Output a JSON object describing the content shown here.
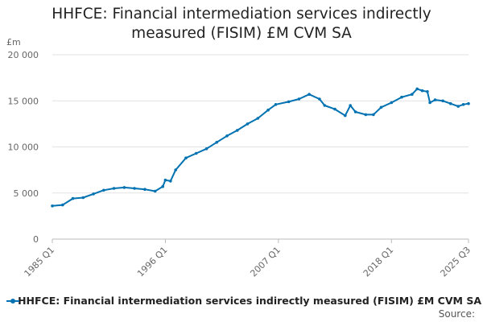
{
  "chart_data": {
    "type": "line",
    "title": "HHFCE: Financial intermediation services indirectly measured (FISIM) £M CVM SA",
    "ylabel": "£m",
    "xlabel": "",
    "ylim": [
      0,
      20000
    ],
    "y_ticks": [
      "0",
      "5 000",
      "10 000",
      "15 000",
      "20 000"
    ],
    "y_tick_values": [
      0,
      5000,
      10000,
      15000,
      20000
    ],
    "x_range": [
      "1985 Q1",
      "2025 Q3"
    ],
    "x_ticks": [
      "1985 Q1",
      "1996 Q1",
      "2007 Q1",
      "2018 Q1",
      "2025 Q3"
    ],
    "grid": true,
    "legend_position": "bottom",
    "series": [
      {
        "name": "HHFCE: Financial intermediation services indirectly measured (FISIM) £M CVM SA",
        "color": "#0072b2",
        "points": [
          [
            "1985 Q1",
            3600
          ],
          [
            "1986 Q1",
            3700
          ],
          [
            "1987 Q1",
            4400
          ],
          [
            "1988 Q1",
            4500
          ],
          [
            "1989 Q1",
            4900
          ],
          [
            "1990 Q1",
            5300
          ],
          [
            "1991 Q1",
            5500
          ],
          [
            "1992 Q1",
            5600
          ],
          [
            "1993 Q1",
            5500
          ],
          [
            "1994 Q1",
            5400
          ],
          [
            "1995 Q1",
            5200
          ],
          [
            "1995 Q4",
            5700
          ],
          [
            "1996 Q1",
            6400
          ],
          [
            "1996 Q3",
            6300
          ],
          [
            "1997 Q1",
            7500
          ],
          [
            "1998 Q1",
            8800
          ],
          [
            "1999 Q1",
            9300
          ],
          [
            "2000 Q1",
            9800
          ],
          [
            "2001 Q1",
            10500
          ],
          [
            "2002 Q1",
            11200
          ],
          [
            "2003 Q1",
            11800
          ],
          [
            "2004 Q1",
            12500
          ],
          [
            "2005 Q1",
            13100
          ],
          [
            "2006 Q1",
            14000
          ],
          [
            "2006 Q4",
            14600
          ],
          [
            "2008 Q1",
            14900
          ],
          [
            "2009 Q1",
            15200
          ],
          [
            "2010 Q1",
            15700
          ],
          [
            "2011 Q1",
            15200
          ],
          [
            "2011 Q3",
            14500
          ],
          [
            "2012 Q3",
            14100
          ],
          [
            "2013 Q3",
            13400
          ],
          [
            "2014 Q1",
            14500
          ],
          [
            "2014 Q3",
            13800
          ],
          [
            "2015 Q3",
            13500
          ],
          [
            "2016 Q2",
            13500
          ],
          [
            "2017 Q1",
            14300
          ],
          [
            "2018 Q1",
            14800
          ],
          [
            "2019 Q1",
            15400
          ],
          [
            "2020 Q1",
            15700
          ],
          [
            "2020 Q3",
            16300
          ],
          [
            "2021 Q1",
            16100
          ],
          [
            "2021 Q3",
            16000
          ],
          [
            "2021 Q4",
            14800
          ],
          [
            "2022 Q2",
            15100
          ],
          [
            "2023 Q1",
            15000
          ],
          [
            "2023 Q4",
            14700
          ],
          [
            "2024 Q3",
            14400
          ],
          [
            "2025 Q1",
            14600
          ],
          [
            "2025 Q3",
            14700
          ]
        ]
      }
    ]
  },
  "legend": {
    "label": "HHFCE: Financial intermediation services indirectly measured (FISIM) £M CVM SA"
  },
  "footer": {
    "source": "Source:"
  }
}
